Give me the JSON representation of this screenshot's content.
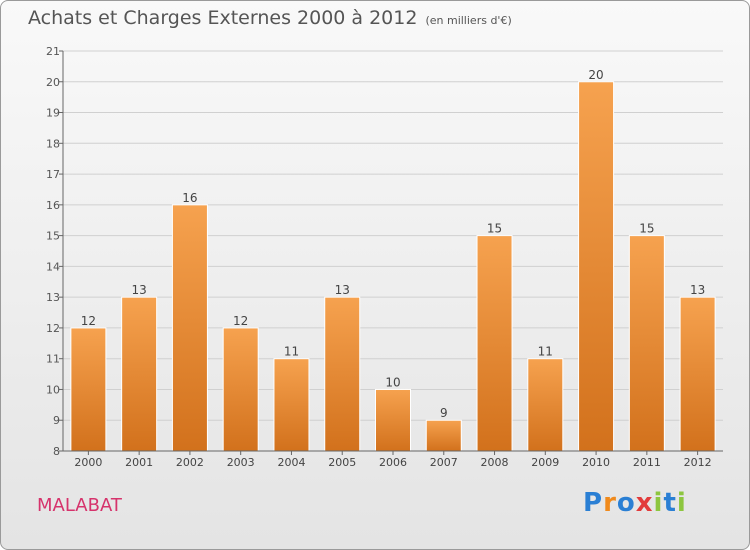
{
  "title": "Achats et Charges Externes 2000 à 2012",
  "subtitle": "(en milliers d'€)",
  "commune": "MALABAT",
  "logo": {
    "letters": [
      {
        "ch": "P",
        "color": "#2a7fd4"
      },
      {
        "ch": "r",
        "color": "#f08a1c"
      },
      {
        "ch": "o",
        "color": "#2a7fd4"
      },
      {
        "ch": "x",
        "color": "#e23b3b"
      },
      {
        "ch": "i",
        "color": "#8dc63f"
      },
      {
        "ch": "t",
        "color": "#2a7fd4"
      },
      {
        "ch": "i",
        "color": "#8dc63f"
      }
    ]
  },
  "chart_data": {
    "type": "bar",
    "categories": [
      "2000",
      "2001",
      "2002",
      "2003",
      "2004",
      "2005",
      "2006",
      "2007",
      "2008",
      "2009",
      "2010",
      "2011",
      "2012"
    ],
    "values": [
      12,
      13,
      16,
      12,
      11,
      13,
      10,
      9,
      15,
      11,
      20,
      15,
      13
    ],
    "ylim": [
      8,
      21
    ],
    "yticks": [
      8,
      9,
      10,
      11,
      12,
      13,
      14,
      15,
      16,
      17,
      18,
      19,
      20,
      21
    ],
    "grid": true,
    "colors": {
      "bar_top": "#f6a24f",
      "bar_bottom": "#d2711c",
      "bar_border": "#ffffff",
      "grid": "#d0d0d0"
    }
  }
}
